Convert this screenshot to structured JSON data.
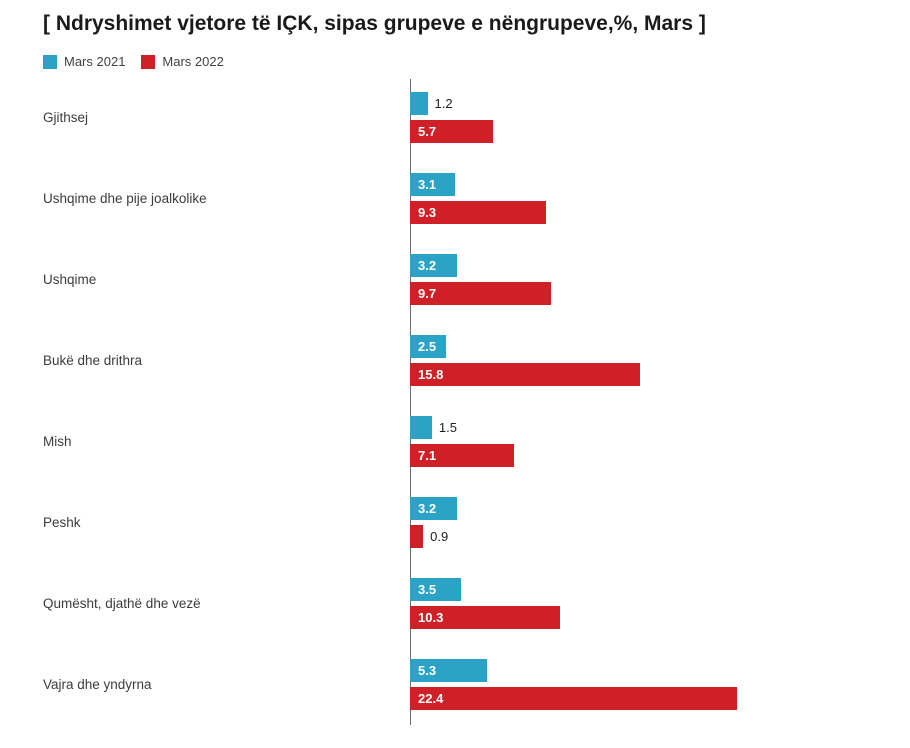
{
  "header": {
    "title": "[ Ndryshimet vjetore të IÇK, sipas grupeve e nëngrupeve,%, Mars ]"
  },
  "legend": {
    "items": [
      {
        "label": "Mars 2021",
        "color": "#2BA3C7"
      },
      {
        "label": "Mars 2022",
        "color": "#CE2026"
      }
    ]
  },
  "chart_data": {
    "type": "bar",
    "orientation": "horizontal",
    "title": "[ Ndryshimet vjetore të IÇK, sipas grupeve e nëngrupeve,%, Mars ]",
    "categories": [
      "Gjithsej",
      "Ushqime dhe pije joalkolike",
      "Ushqime",
      "Bukë dhe drithra",
      "Mish",
      "Peshk",
      "Qumësht, djathë dhe vezë",
      "Vajra dhe yndyrna"
    ],
    "series": [
      {
        "name": "Mars 2021",
        "color": "#2BA3C7",
        "values": [
          1.2,
          3.1,
          3.2,
          2.5,
          1.5,
          3.2,
          3.5,
          5.3
        ]
      },
      {
        "name": "Mars 2022",
        "color": "#CE2026",
        "values": [
          5.7,
          9.3,
          9.7,
          15.8,
          7.1,
          0.9,
          10.3,
          22.4
        ]
      }
    ],
    "xlabel": "",
    "ylabel": "",
    "xmax": 33.6,
    "inside_label_min": 2.0,
    "grid": false,
    "legend_position": "top"
  }
}
